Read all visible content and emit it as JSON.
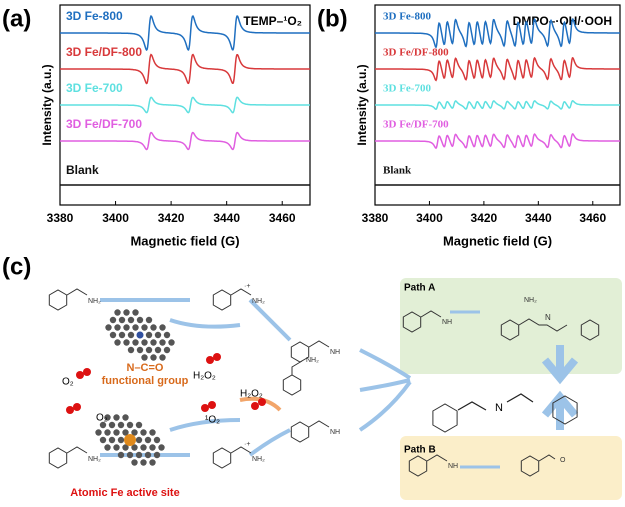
{
  "chart_data": [
    {
      "type": "line",
      "panel": "(a)",
      "annotation": "TEMP–¹O₂",
      "xlabel": "Magnetic field (G)",
      "ylabel": "Intensity (a.u.)",
      "xlim": [
        3380,
        3470
      ],
      "xticks": [
        3380,
        3400,
        3420,
        3440,
        3460
      ],
      "peaks": [
        3412,
        3427,
        3443
      ],
      "series": [
        {
          "name": "3D Fe-800",
          "color": "#1f6fc0",
          "amplitude": 1.0
        },
        {
          "name": "3D Fe/DF-800",
          "color": "#d8393b",
          "amplitude": 0.85
        },
        {
          "name": "3D Fe-700",
          "color": "#5ee0e0",
          "amplitude": 0.45
        },
        {
          "name": "3D Fe/DF-700",
          "color": "#e05ee0",
          "amplitude": 0.5
        },
        {
          "name": "Blank",
          "color": "#111111",
          "amplitude": 0
        }
      ]
    },
    {
      "type": "line",
      "panel": "(b)",
      "annotation": "DMPO–·OH/·OOH",
      "xlabel": "Magnetic field (G)",
      "ylabel": "Intensity (a.u.)",
      "xlim": [
        3380,
        3470
      ],
      "xticks": [
        3380,
        3400,
        3420,
        3440,
        3460
      ],
      "peaks": [
        3403,
        3406,
        3409,
        3414,
        3417,
        3420,
        3423,
        3428,
        3432,
        3435,
        3438,
        3444,
        3449,
        3452
      ],
      "series": [
        {
          "name": "3D Fe-800",
          "color": "#1f6fc0",
          "amplitude": 1.0
        },
        {
          "name": "3D Fe/DF-800",
          "color": "#d8393b",
          "amplitude": 0.8
        },
        {
          "name": "3D Fe-700",
          "color": "#5ee0e0",
          "amplitude": 0.3
        },
        {
          "name": "3D Fe/DF-700",
          "color": "#e05ee0",
          "amplitude": 0.5
        },
        {
          "name": "Blank",
          "color": "#111111",
          "amplitude": 0
        }
      ]
    }
  ],
  "scheme": {
    "label": "(c)",
    "amine": "NH₂",
    "imine": "NH",
    "radical": "·+",
    "o2": "O₂",
    "h2o2": "H₂O₂",
    "singlet": "¹O₂",
    "group_line1": "N–C=O",
    "group_line2": "functional group",
    "site": "Atomic Fe active site",
    "path_a": "Path A",
    "path_b": "Path B",
    "nitrogen": "N",
    "oxygen": "O"
  }
}
